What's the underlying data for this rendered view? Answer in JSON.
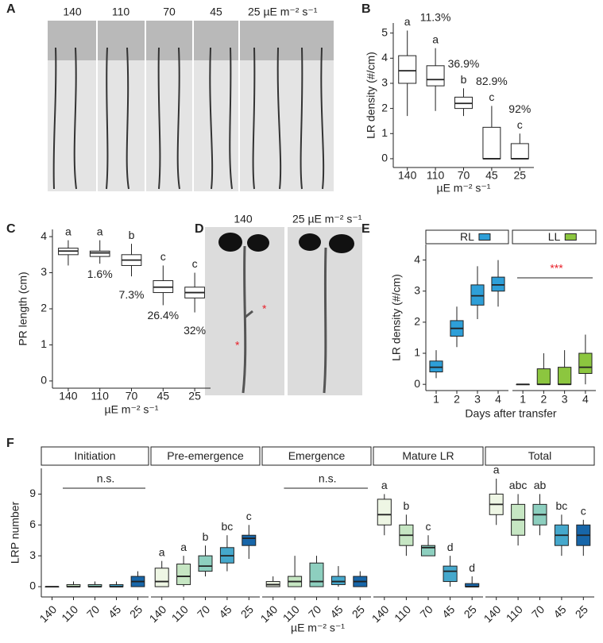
{
  "panel_labels": [
    "A",
    "B",
    "C",
    "D",
    "E",
    "F"
  ],
  "photo_a": {
    "labels": [
      "140",
      "110",
      "70",
      "45",
      "25 µE m⁻² s⁻¹"
    ]
  },
  "photo_d": {
    "labels": [
      "140",
      "25  µE m⁻² s⁻¹"
    ]
  },
  "chart_data": [
    {
      "type": "box",
      "ylabel": "LR density (#/cm)",
      "xlabel": "µE m⁻² s⁻¹",
      "categories": [
        "140",
        "110",
        "70",
        "45",
        "25"
      ],
      "ylim": [
        -0.35,
        5.4
      ],
      "yticks": [
        0,
        1,
        2,
        3,
        4,
        5
      ],
      "boxes": [
        {
          "min": 1.7,
          "q1": 3.0,
          "median": 3.5,
          "q3": 4.1,
          "max": 5.1
        },
        {
          "min": 1.9,
          "q1": 2.9,
          "median": 3.15,
          "q3": 3.7,
          "max": 4.4
        },
        {
          "min": 1.7,
          "q1": 2.0,
          "median": 2.2,
          "q3": 2.45,
          "max": 2.8
        },
        {
          "min": 0,
          "q1": 0,
          "median": 0,
          "q3": 1.25,
          "max": 2.1
        },
        {
          "min": 0,
          "q1": 0,
          "median": 0,
          "q3": 0.6,
          "max": 1.0
        }
      ],
      "letters": [
        "a",
        "a",
        "b",
        "c",
        "c"
      ],
      "pct_labels": [
        null,
        "11.3%",
        "36.9%",
        "82.9%",
        "92%"
      ]
    },
    {
      "type": "box",
      "ylabel": "PR length (cm)",
      "xlabel": "µE m⁻² s⁻¹",
      "categories": [
        "140",
        "110",
        "70",
        "45",
        "25"
      ],
      "ylim": [
        -0.2,
        4.2
      ],
      "yticks": [
        0,
        1,
        2,
        3,
        4
      ],
      "boxes": [
        {
          "min": 3.2,
          "q1": 3.5,
          "median": 3.6,
          "q3": 3.68,
          "max": 3.9
        },
        {
          "min": 3.25,
          "q1": 3.45,
          "median": 3.55,
          "q3": 3.6,
          "max": 3.9
        },
        {
          "min": 2.9,
          "q1": 3.2,
          "median": 3.35,
          "q3": 3.5,
          "max": 3.8
        },
        {
          "min": 2.1,
          "q1": 2.45,
          "median": 2.6,
          "q3": 2.78,
          "max": 3.2
        },
        {
          "min": 1.9,
          "q1": 2.3,
          "median": 2.45,
          "q3": 2.6,
          "max": 3.0
        }
      ],
      "letters": [
        "a",
        "a",
        "b",
        "c",
        "c"
      ],
      "pct_labels": [
        null,
        "1.6%",
        "7.3%",
        "26.4%",
        "32%"
      ]
    },
    {
      "type": "box",
      "ylabel": "LR density (#/cm)",
      "xlabel": "Days after transfer",
      "categories": [
        "1",
        "2",
        "3",
        "4"
      ],
      "ylim": [
        -0.2,
        4.5
      ],
      "yticks": [
        0,
        1,
        2,
        3,
        4
      ],
      "facets": [
        {
          "title": "RL",
          "color": "#2e9fd8",
          "boxes": [
            {
              "min": 0.2,
              "q1": 0.4,
              "median": 0.55,
              "q3": 0.75,
              "max": 1.1
            },
            {
              "min": 1.2,
              "q1": 1.55,
              "median": 1.8,
              "q3": 2.05,
              "max": 2.5
            },
            {
              "min": 2.1,
              "q1": 2.55,
              "median": 2.85,
              "q3": 3.2,
              "max": 3.8
            },
            {
              "min": 2.5,
              "q1": 3.0,
              "median": 3.2,
              "q3": 3.45,
              "max": 4.0
            }
          ]
        },
        {
          "title": "LL",
          "color": "#8cc63f",
          "annotation": "***",
          "annotation_color": "#e8202a",
          "boxes": [
            {
              "min": 0,
              "q1": 0,
              "median": 0,
              "q3": 0,
              "max": 0
            },
            {
              "min": 0,
              "q1": 0,
              "median": 0,
              "q3": 0.5,
              "max": 1.0
            },
            {
              "min": 0,
              "q1": 0,
              "median": 0,
              "q3": 0.55,
              "max": 1.1
            },
            {
              "min": 0,
              "q1": 0.35,
              "median": 0.55,
              "q3": 1.0,
              "max": 1.6
            }
          ]
        }
      ]
    },
    {
      "type": "box",
      "ylabel": "LRP number",
      "xlabel": "µE m⁻² s⁻¹",
      "categories": [
        "140",
        "110",
        "70",
        "45",
        "25"
      ],
      "colors": [
        "#eef6e4",
        "#c6e6c3",
        "#8dcfbf",
        "#45a8cc",
        "#1766a9"
      ],
      "ylim": [
        -1,
        11.5
      ],
      "yticks": [
        0,
        3,
        6,
        9
      ],
      "facets": [
        {
          "title": "Initiation",
          "annotation": "n.s.",
          "boxes": [
            {
              "min": 0,
              "q1": 0,
              "median": 0,
              "q3": 0,
              "max": 0
            },
            {
              "min": 0,
              "q1": 0,
              "median": 0,
              "q3": 0.2,
              "max": 0.5
            },
            {
              "min": 0,
              "q1": 0,
              "median": 0,
              "q3": 0.2,
              "max": 0.5
            },
            {
              "min": 0,
              "q1": 0,
              "median": 0,
              "q3": 0.2,
              "max": 0.5
            },
            {
              "min": 0,
              "q1": 0,
              "median": 0.5,
              "q3": 1.0,
              "max": 1.5
            }
          ]
        },
        {
          "title": "Pre-emergence",
          "letters": [
            "a",
            "a",
            "b",
            "bc",
            "c"
          ],
          "boxes": [
            {
              "min": 0,
              "q1": 0,
              "median": 0.5,
              "q3": 1.8,
              "max": 2.5
            },
            {
              "min": 0,
              "q1": 0.2,
              "median": 1.0,
              "q3": 2.2,
              "max": 3
            },
            {
              "min": 1,
              "q1": 1.5,
              "median": 2,
              "q3": 3,
              "max": 4
            },
            {
              "min": 1.5,
              "q1": 2.3,
              "median": 3,
              "q3": 3.8,
              "max": 5
            },
            {
              "min": 2.7,
              "q1": 4,
              "median": 4.7,
              "q3": 5,
              "max": 6
            }
          ]
        },
        {
          "title": "Emergence",
          "annotation": "n.s.",
          "boxes": [
            {
              "min": 0,
              "q1": 0,
              "median": 0.2,
              "q3": 0.5,
              "max": 1
            },
            {
              "min": 0,
              "q1": 0,
              "median": 0.5,
              "q3": 1,
              "max": 3
            },
            {
              "min": 0,
              "q1": 0,
              "median": 0.5,
              "q3": 2.3,
              "max": 3
            },
            {
              "min": 0,
              "q1": 0.2,
              "median": 0.5,
              "q3": 1,
              "max": 2
            },
            {
              "min": 0,
              "q1": 0,
              "median": 0.5,
              "q3": 1,
              "max": 1.5
            }
          ]
        },
        {
          "title": "Mature LR",
          "letters": [
            "a",
            "b",
            "c",
            "d",
            "d"
          ],
          "boxes": [
            {
              "min": 5,
              "q1": 6,
              "median": 7,
              "q3": 8.5,
              "max": 9
            },
            {
              "min": 3,
              "q1": 4,
              "median": 5,
              "q3": 6,
              "max": 7
            },
            {
              "min": 3,
              "q1": 3,
              "median": 3.8,
              "q3": 4,
              "max": 5
            },
            {
              "min": 0,
              "q1": 0.5,
              "median": 1.5,
              "q3": 2,
              "max": 3
            },
            {
              "min": 0,
              "q1": 0,
              "median": 0,
              "q3": 0.3,
              "max": 1
            }
          ]
        },
        {
          "title": "Total",
          "letters": [
            "a",
            "abc",
            "ab",
            "bc",
            "c"
          ],
          "boxes": [
            {
              "min": 6,
              "q1": 7,
              "median": 8,
              "q3": 9,
              "max": 10.5
            },
            {
              "min": 4,
              "q1": 5,
              "median": 6.5,
              "q3": 8,
              "max": 9
            },
            {
              "min": 5,
              "q1": 6,
              "median": 7,
              "q3": 8,
              "max": 9
            },
            {
              "min": 3,
              "q1": 4,
              "median": 5,
              "q3": 6,
              "max": 7
            },
            {
              "min": 3,
              "q1": 4,
              "median": 5,
              "q3": 6,
              "max": 6.5
            }
          ]
        }
      ]
    }
  ]
}
